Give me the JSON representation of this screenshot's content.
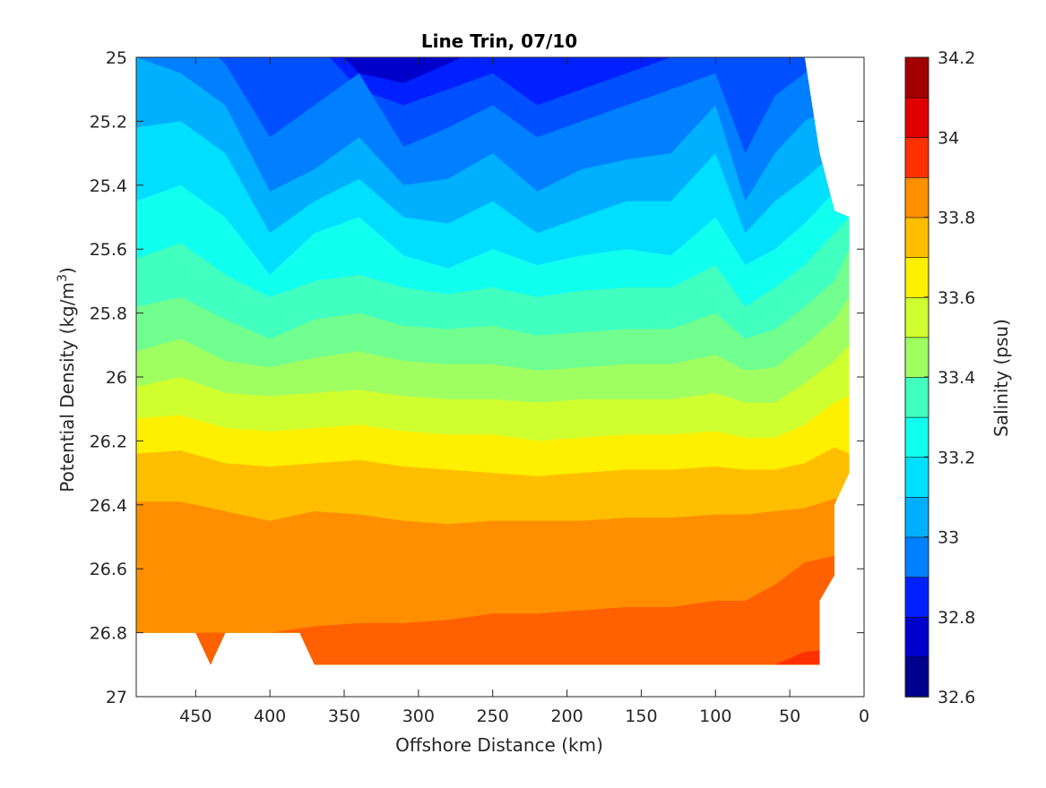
{
  "chart_data": {
    "type": "contour",
    "title": "Line Trin, 07/10",
    "xlabel": "Offshore Distance (km)",
    "ylabel": "Potential Density (kg/m",
    "ylabel_sup": "3",
    "ylabel_suffix": ")",
    "colorbar_label": "Salinity (psu)",
    "x_reversed": true,
    "xlim": [
      490,
      0
    ],
    "ylim": [
      25,
      27
    ],
    "y_reversed": true,
    "x_ticks": [
      450,
      400,
      350,
      300,
      250,
      200,
      150,
      100,
      50,
      0
    ],
    "y_ticks": [
      25,
      25.2,
      25.4,
      25.6,
      25.8,
      26,
      26.2,
      26.4,
      26.6,
      26.8,
      27
    ],
    "x_tick_labels": [
      "450",
      "400",
      "350",
      "300",
      "250",
      "200",
      "150",
      "100",
      "50",
      "0"
    ],
    "y_tick_labels": [
      "25",
      "25.2",
      "25.4",
      "25.6",
      "25.8",
      "26",
      "26.2",
      "26.4",
      "26.6",
      "26.8",
      "27"
    ],
    "colorbar": {
      "range": [
        32.6,
        34.2
      ],
      "step": 0.1,
      "tick_labels": [
        "32.6",
        "32.8",
        "33",
        "33.2",
        "33.4",
        "33.6",
        "33.8",
        "34",
        "34.2"
      ],
      "colors": [
        "#00008f",
        "#0000cc",
        "#0020ff",
        "#0050ff",
        "#0080ff",
        "#00b0ff",
        "#00dfff",
        "#10ffef",
        "#40ffbf",
        "#70ff8f",
        "#a0ff60",
        "#d0ff30",
        "#ffef00",
        "#ffbf00",
        "#ff8f00",
        "#ff6000",
        "#ff3000",
        "#e00000",
        "#a00000"
      ]
    },
    "x_grid": [
      490,
      460,
      430,
      400,
      370,
      340,
      310,
      280,
      250,
      220,
      190,
      160,
      130,
      100,
      80,
      60,
      40,
      20,
      10
    ],
    "contour_boundaries": {
      "levels": [
        32.7,
        32.8,
        32.9,
        33.0,
        33.1,
        33.2,
        33.3,
        33.4,
        33.5,
        33.6,
        33.7,
        33.8,
        33.9,
        34.0,
        34.1
      ],
      "densities": [
        [
          24.9,
          24.9,
          24.9,
          24.9,
          24.9,
          25.05,
          25.08,
          25.02,
          24.95,
          24.9,
          24.9,
          24.9,
          24.9,
          24.9,
          24.9,
          24.9,
          24.9,
          24.9,
          24.9
        ],
        [
          24.9,
          24.9,
          24.9,
          24.9,
          24.95,
          25.1,
          25.15,
          25.1,
          25.05,
          25.15,
          25.1,
          25.05,
          25.0,
          24.95,
          25.0,
          24.95,
          24.9,
          24.9,
          24.9
        ],
        [
          24.9,
          24.9,
          25.02,
          25.25,
          25.15,
          25.05,
          25.28,
          25.22,
          25.15,
          25.25,
          25.2,
          25.15,
          25.1,
          25.05,
          25.3,
          25.12,
          25.05,
          24.9,
          24.9
        ],
        [
          25.0,
          25.05,
          25.15,
          25.42,
          25.35,
          25.25,
          25.4,
          25.38,
          25.3,
          25.42,
          25.35,
          25.32,
          25.3,
          25.15,
          25.45,
          25.3,
          25.2,
          25.15,
          25.2
        ],
        [
          25.22,
          25.2,
          25.3,
          25.55,
          25.45,
          25.38,
          25.5,
          25.52,
          25.45,
          25.55,
          25.5,
          25.45,
          25.45,
          25.3,
          25.55,
          25.45,
          25.38,
          25.3,
          25.3
        ],
        [
          25.45,
          25.4,
          25.5,
          25.68,
          25.55,
          25.5,
          25.62,
          25.66,
          25.6,
          25.65,
          25.62,
          25.6,
          25.62,
          25.5,
          25.65,
          25.6,
          25.52,
          25.42,
          25.4
        ],
        [
          25.63,
          25.58,
          25.68,
          25.75,
          25.7,
          25.68,
          25.72,
          25.74,
          25.72,
          25.75,
          25.73,
          25.72,
          25.72,
          25.65,
          25.78,
          25.72,
          25.65,
          25.55,
          25.5
        ],
        [
          25.78,
          25.75,
          25.82,
          25.88,
          25.82,
          25.8,
          25.84,
          25.85,
          25.84,
          25.87,
          25.86,
          25.85,
          25.85,
          25.8,
          25.88,
          25.85,
          25.78,
          25.7,
          25.6
        ],
        [
          25.92,
          25.88,
          25.95,
          25.97,
          25.94,
          25.92,
          25.95,
          25.96,
          25.96,
          25.98,
          25.97,
          25.96,
          25.96,
          25.93,
          25.98,
          25.97,
          25.9,
          25.82,
          25.75
        ],
        [
          26.03,
          26.0,
          26.05,
          26.06,
          26.05,
          26.04,
          26.06,
          26.07,
          26.07,
          26.08,
          26.07,
          26.07,
          26.07,
          26.05,
          26.08,
          26.08,
          26.02,
          25.95,
          25.9
        ],
        [
          26.13,
          26.12,
          26.16,
          26.17,
          26.16,
          26.15,
          26.17,
          26.18,
          26.18,
          26.2,
          26.19,
          26.18,
          26.18,
          26.17,
          26.19,
          26.19,
          26.15,
          26.08,
          26.06
        ],
        [
          26.24,
          26.23,
          26.27,
          26.28,
          26.27,
          26.26,
          26.28,
          26.29,
          26.3,
          26.31,
          26.3,
          26.29,
          26.29,
          26.28,
          26.29,
          26.29,
          26.27,
          26.22,
          26.24
        ],
        [
          26.39,
          26.39,
          26.42,
          26.45,
          26.42,
          26.43,
          26.45,
          26.46,
          26.45,
          26.45,
          26.45,
          26.44,
          26.44,
          26.43,
          26.43,
          26.42,
          26.41,
          26.38,
          26.4
        ],
        [
          26.8,
          26.8,
          26.8,
          26.8,
          26.78,
          26.77,
          26.77,
          26.76,
          26.74,
          26.74,
          26.73,
          26.72,
          26.72,
          26.7,
          26.7,
          26.65,
          26.58,
          26.56,
          26.56
        ],
        [
          26.95,
          26.95,
          26.95,
          26.95,
          26.95,
          26.95,
          26.95,
          26.95,
          26.95,
          26.95,
          26.95,
          26.95,
          26.95,
          26.95,
          26.95,
          26.9,
          26.86,
          26.85,
          26.85
        ]
      ]
    },
    "data_top_edge": [
      [
        490,
        25
      ],
      [
        40,
        25
      ],
      [
        35,
        25.15
      ],
      [
        30,
        25.3
      ],
      [
        20,
        25.48
      ],
      [
        10,
        25.5
      ],
      [
        10,
        26.3
      ],
      [
        20,
        26.4
      ],
      [
        20,
        26.62
      ],
      [
        30,
        26.7
      ],
      [
        30,
        26.9
      ]
    ],
    "data_bottom_edge": [
      [
        490,
        26.8
      ],
      [
        450,
        26.8
      ],
      [
        440,
        26.9
      ],
      [
        430,
        26.8
      ],
      [
        380,
        26.8
      ],
      [
        370,
        26.9
      ],
      [
        30,
        26.9
      ]
    ]
  }
}
